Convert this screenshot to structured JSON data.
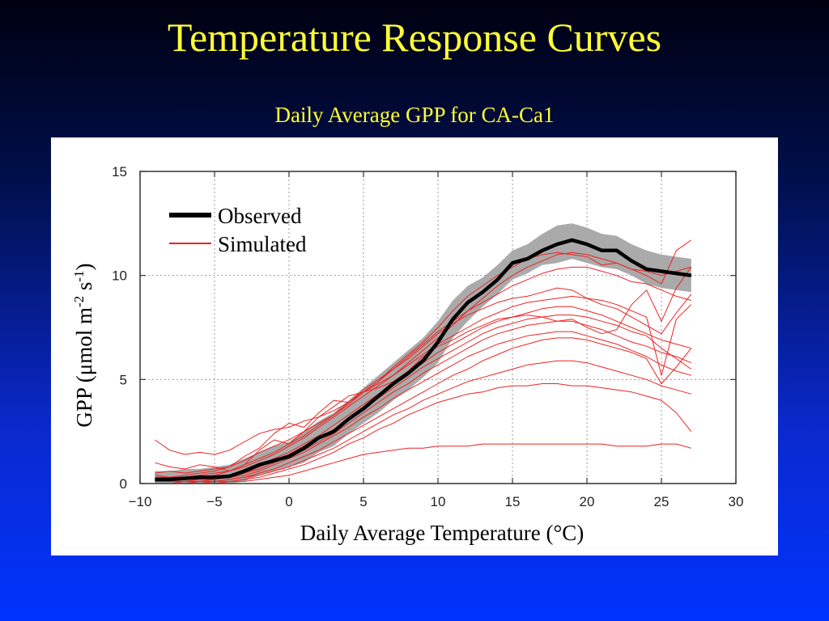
{
  "slide": {
    "title": "Temperature Response Curves",
    "subtitle": "Daily Average GPP for CA-Ca1"
  },
  "colors": {
    "title": "#ffff33",
    "observed": "#000000",
    "band": "#aaaaaa",
    "simulated": "#ee2222"
  },
  "chart_data": {
    "type": "line",
    "xlabel": "Daily Average Temperature (°C)",
    "ylabel_main": "GPP (",
    "ylabel_mu": "μ",
    "ylabel_mol": "mol m",
    "ylabel_sup1": "-2",
    "ylabel_s": " s",
    "ylabel_sup2": "-1",
    "ylabel_close": ")",
    "xlim": [
      -10,
      30
    ],
    "ylim": [
      0,
      15
    ],
    "xticks": [
      "−10",
      "−5",
      "0",
      "5",
      "10",
      "15",
      "20",
      "25",
      "30"
    ],
    "yticks": [
      "0",
      "5",
      "10",
      "15"
    ],
    "grid": true,
    "legend_position": "top-left",
    "legend": [
      "Observed",
      "Simulated"
    ],
    "x": [
      -9,
      -8,
      -7,
      -6,
      -5,
      -4,
      -3,
      -2,
      -1,
      0,
      1,
      2,
      3,
      4,
      5,
      6,
      7,
      8,
      9,
      10,
      11,
      12,
      13,
      14,
      15,
      16,
      17,
      18,
      19,
      20,
      21,
      22,
      23,
      24,
      25,
      26,
      27
    ],
    "observed": [
      0.2,
      0.2,
      0.25,
      0.3,
      0.3,
      0.35,
      0.6,
      0.9,
      1.1,
      1.3,
      1.7,
      2.2,
      2.5,
      3.1,
      3.6,
      4.2,
      4.8,
      5.3,
      5.9,
      6.8,
      7.9,
      8.7,
      9.2,
      9.8,
      10.6,
      10.8,
      11.2,
      11.5,
      11.7,
      11.5,
      11.2,
      11.2,
      10.7,
      10.3,
      10.2,
      10.1,
      10.0
    ],
    "band_upper": [
      0.6,
      0.6,
      0.7,
      0.7,
      0.8,
      0.9,
      1.2,
      1.5,
      1.8,
      2.0,
      2.5,
      3.0,
      3.4,
      4.0,
      4.6,
      5.2,
      5.8,
      6.4,
      7.0,
      7.8,
      8.8,
      9.5,
      9.9,
      10.5,
      11.2,
      11.5,
      12.0,
      12.4,
      12.5,
      12.3,
      12.0,
      11.9,
      11.5,
      11.2,
      11.0,
      10.9,
      10.8
    ],
    "band_lower": [
      0.0,
      0.0,
      0.0,
      0.0,
      0.0,
      0.0,
      0.1,
      0.4,
      0.6,
      0.8,
      1.0,
      1.5,
      1.8,
      2.4,
      2.9,
      3.4,
      4.0,
      4.5,
      5.1,
      5.8,
      7.0,
      7.8,
      8.5,
      9.1,
      9.8,
      10.1,
      10.5,
      10.6,
      10.8,
      10.6,
      10.4,
      10.3,
      10.0,
      9.6,
      9.4,
      9.3,
      9.2
    ],
    "series": [
      {
        "values": [
          2.1,
          1.6,
          1.4,
          1.5,
          1.4,
          1.6,
          2.0,
          2.4,
          2.6,
          2.7,
          3.0,
          3.2,
          3.5,
          3.9,
          4.4,
          4.8,
          5.2,
          5.8,
          6.4,
          7.0,
          7.6,
          8.3,
          8.9,
          9.5,
          10.0,
          10.4,
          10.7,
          11.0,
          11.1,
          11.0,
          10.8,
          10.6,
          10.3,
          10.2,
          10.0,
          10.2,
          10.4
        ]
      },
      {
        "values": [
          0.4,
          0.3,
          0.4,
          0.5,
          0.6,
          0.8,
          1.1,
          1.5,
          1.8,
          2.1,
          2.5,
          2.9,
          3.3,
          3.9,
          4.4,
          4.9,
          5.6,
          6.2,
          6.8,
          7.5,
          8.3,
          9.0,
          9.5,
          10.0,
          10.4,
          10.8,
          11.0,
          11.1,
          11.0,
          10.9,
          10.5,
          10.6,
          10.3,
          10.0,
          9.6,
          11.2,
          11.7
        ]
      },
      {
        "values": [
          0.3,
          0.3,
          0.3,
          0.4,
          0.5,
          0.6,
          0.9,
          1.2,
          1.5,
          1.9,
          2.3,
          2.8,
          3.3,
          3.8,
          4.4,
          4.9,
          5.5,
          6.1,
          6.7,
          7.3,
          7.8,
          8.3,
          8.7,
          9.1,
          9.5,
          9.8,
          10.1,
          10.3,
          10.4,
          10.4,
          10.2,
          10.0,
          9.7,
          9.6,
          9.3,
          9.0,
          8.8
        ]
      },
      {
        "values": [
          0.2,
          0.2,
          0.2,
          0.3,
          0.4,
          0.6,
          0.8,
          1.1,
          1.4,
          1.8,
          2.2,
          2.7,
          3.2,
          3.7,
          4.2,
          4.7,
          5.2,
          5.7,
          6.2,
          6.7,
          7.1,
          7.5,
          7.9,
          8.2,
          8.5,
          8.7,
          8.8,
          8.9,
          9.0,
          8.9,
          8.8,
          8.6,
          8.3,
          8.0,
          5.2,
          7.9,
          8.6
        ]
      },
      {
        "values": [
          0.1,
          0.1,
          0.2,
          0.2,
          0.3,
          0.4,
          0.6,
          0.9,
          1.2,
          1.5,
          1.9,
          2.3,
          2.8,
          3.3,
          3.8,
          4.3,
          4.8,
          5.3,
          5.8,
          6.3,
          6.7,
          7.1,
          7.5,
          7.8,
          8.0,
          8.2,
          8.4,
          8.5,
          8.5,
          8.3,
          8.1,
          7.8,
          7.5,
          7.2,
          6.9,
          6.7,
          6.5
        ]
      },
      {
        "values": [
          0.1,
          0.1,
          0.1,
          0.2,
          0.2,
          0.3,
          0.5,
          0.8,
          1.1,
          1.4,
          1.8,
          2.2,
          2.6,
          3.1,
          3.6,
          4.1,
          4.6,
          5.1,
          5.6,
          6.0,
          6.4,
          6.8,
          7.2,
          7.5,
          7.7,
          7.9,
          8.0,
          8.1,
          8.1,
          8.0,
          7.8,
          7.6,
          7.3,
          7.1,
          6.5,
          6.0,
          5.5
        ]
      },
      {
        "values": [
          0.1,
          0.1,
          0.1,
          0.1,
          0.2,
          0.3,
          0.5,
          0.7,
          1.0,
          1.3,
          1.6,
          2.0,
          2.4,
          2.9,
          3.4,
          3.9,
          4.4,
          4.8,
          5.3,
          5.7,
          6.1,
          6.5,
          6.9,
          7.2,
          7.4,
          7.6,
          7.7,
          7.8,
          7.8,
          7.6,
          7.4,
          7.1,
          6.8,
          6.6,
          6.3,
          6.1,
          5.8
        ]
      },
      {
        "values": [
          0.0,
          0.0,
          0.1,
          0.1,
          0.2,
          0.3,
          0.4,
          0.6,
          0.9,
          1.2,
          1.5,
          1.9,
          2.3,
          2.7,
          3.2,
          3.6,
          4.1,
          4.5,
          4.9,
          5.3,
          5.7,
          6.1,
          6.4,
          6.7,
          6.9,
          7.1,
          7.2,
          7.3,
          7.3,
          7.1,
          6.9,
          6.7,
          6.4,
          6.1,
          5.7,
          5.4,
          5.2
        ]
      },
      {
        "values": [
          0.0,
          0.0,
          0.0,
          0.1,
          0.1,
          0.2,
          0.3,
          0.5,
          0.7,
          1.0,
          1.3,
          1.6,
          2.0,
          2.4,
          2.8,
          3.2,
          3.6,
          4.0,
          4.4,
          4.8,
          5.2,
          5.5,
          5.9,
          6.2,
          6.5,
          6.7,
          6.9,
          7.0,
          7.0,
          6.9,
          6.7,
          6.5,
          6.3,
          6.0,
          4.8,
          5.6,
          6.5
        ]
      },
      {
        "values": [
          0.0,
          0.0,
          0.0,
          0.1,
          0.1,
          0.2,
          0.3,
          0.4,
          0.6,
          0.8,
          1.1,
          1.4,
          1.7,
          2.1,
          2.5,
          2.9,
          3.3,
          3.6,
          4.0,
          4.3,
          4.6,
          4.9,
          5.1,
          5.3,
          5.5,
          5.7,
          5.8,
          5.9,
          5.9,
          5.8,
          5.6,
          5.4,
          5.2,
          5.0,
          4.7,
          4.5,
          4.3
        ]
      },
      {
        "values": [
          0.0,
          0.0,
          0.0,
          0.0,
          0.1,
          0.1,
          0.2,
          0.3,
          0.5,
          0.7,
          0.9,
          1.2,
          1.5,
          1.9,
          2.2,
          2.6,
          2.9,
          3.3,
          3.6,
          3.9,
          4.1,
          4.3,
          4.4,
          4.6,
          4.7,
          4.7,
          4.8,
          4.8,
          4.7,
          4.7,
          4.6,
          4.5,
          4.4,
          4.2,
          4.0,
          3.4,
          2.5
        ]
      },
      {
        "values": [
          0.0,
          0.0,
          0.0,
          0.0,
          0.0,
          0.1,
          0.1,
          0.2,
          0.3,
          0.4,
          0.6,
          0.8,
          1.0,
          1.2,
          1.4,
          1.5,
          1.6,
          1.7,
          1.7,
          1.8,
          1.8,
          1.8,
          1.9,
          1.9,
          1.9,
          1.9,
          1.9,
          1.9,
          1.9,
          1.9,
          1.9,
          1.8,
          1.8,
          1.8,
          1.9,
          1.9,
          1.7
        ]
      },
      {
        "values": [
          1.0,
          0.8,
          0.7,
          0.9,
          0.8,
          0.6,
          0.9,
          1.6,
          2.1,
          1.9,
          2.5,
          3.2,
          3.7,
          4.2,
          4.4,
          4.6,
          4.9,
          5.4,
          6.1,
          6.6,
          6.9,
          7.3,
          7.6,
          7.9,
          8.0,
          8.1,
          8.0,
          7.8,
          7.9,
          7.5,
          7.2,
          7.4,
          8.6,
          9.3,
          7.8,
          9.4,
          10.4
        ]
      },
      {
        "values": [
          0.5,
          0.6,
          0.5,
          0.6,
          0.7,
          0.8,
          1.3,
          1.7,
          2.4,
          2.9,
          2.7,
          3.4,
          4.0,
          3.9,
          4.5,
          5.0,
          5.5,
          6.0,
          6.6,
          7.2,
          7.7,
          8.1,
          8.4,
          8.7,
          8.9,
          9.0,
          9.2,
          9.4,
          9.3,
          8.9,
          8.6,
          8.4,
          8.0,
          7.6,
          7.2,
          8.2,
          9.1
        ]
      }
    ]
  }
}
